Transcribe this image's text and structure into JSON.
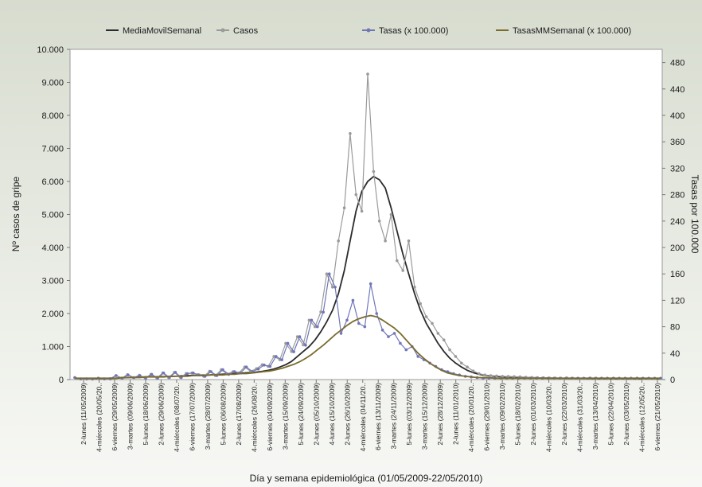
{
  "chart_data": {
    "type": "line",
    "xlabel": "Día y semana epidemiológica (01/05/2009-22/05/2010)",
    "ylabel": "Nº casos de gripe",
    "y2label": "Tasas por 100.000",
    "ylim": [
      0,
      10000
    ],
    "y2lim": [
      0,
      500
    ],
    "y_ticks": [
      "0",
      "1.000",
      "2.000",
      "3.000",
      "4.000",
      "5.000",
      "6.000",
      "7.000",
      "8.000",
      "9.000",
      "10.000"
    ],
    "y2_ticks": [
      "0",
      "40",
      "80",
      "120",
      "160",
      "200",
      "240",
      "280",
      "320",
      "360",
      "400",
      "440",
      "480"
    ],
    "grid": false,
    "legend_position": "top",
    "x_tick_labels": [
      "2-lunes (11/05/2009)",
      "4-miércoles (20/05/20..",
      "6-viernes (29/05/2009)",
      "3-martes (09/06/2009)",
      "5-lunes (18/06/2009)",
      "2-lunes (29/06/2009)",
      "4-miércoles (08/07/20..",
      "6-viernes (17/07/2009)",
      "3-martes (28/07/2009)",
      "5-lunes (06/08/2009)",
      "2-lunes (17/08/2009)",
      "4-miércoles (26/08/20..",
      "6-viernes (04/09/2009)",
      "3-martes (15/09/2009)",
      "5-lunes (24/09/2009)",
      "2-lunes (05/10/2009)",
      "4-lunes (15/10/2009)",
      "2-lunes (26/10/2009)",
      "4-miércoles (04/11/20..",
      "6-viernes (13/11/2009)",
      "3-martes (24/11/2009)",
      "5-lunes (03/12/2009)",
      "3-martes (15/12/2009)",
      "2-lunes (28/12/2009)",
      "2-lunes (11/01/2010)",
      "4-miércoles (20/01/20..",
      "6-viernes (29/01/2010)",
      "3-martes (09/02/2010)",
      "5-lunes (18/02/2010)",
      "2-lunes (01/03/2010)",
      "4-miércoles (10/03/20..",
      "2-lunes (22/03/2010)",
      "4-miércoles (31/03/20..",
      "3-martes (13/04/2010)",
      "5-lunes (22/04/2010)",
      "2-lunes (03/05/2010)",
      "4-miércoles (12/05/20..",
      "6-viernes (21/05/2010)"
    ],
    "series": [
      {
        "name": "MediaMovilSemanal",
        "axis": "left",
        "color": "#2b2b2b",
        "markers": false,
        "values": [
          40,
          35,
          30,
          28,
          30,
          32,
          35,
          40,
          50,
          60,
          70,
          75,
          80,
          85,
          85,
          90,
          95,
          100,
          110,
          120,
          125,
          130,
          135,
          140,
          150,
          160,
          170,
          180,
          190,
          200,
          215,
          230,
          250,
          280,
          320,
          380,
          450,
          550,
          700,
          850,
          1000,
          1200,
          1450,
          1750,
          2100,
          2600,
          3300,
          4200,
          5100,
          5700,
          6000,
          6150,
          6050,
          5800,
          5200,
          4500,
          3800,
          3200,
          2600,
          2100,
          1700,
          1400,
          1100,
          850,
          650,
          500,
          380,
          280,
          210,
          160,
          130,
          110,
          95,
          85,
          78,
          72,
          65,
          60,
          55,
          50,
          45,
          42,
          40,
          38,
          36,
          35,
          34,
          33,
          32,
          31,
          30,
          30,
          29,
          29,
          28,
          28,
          27,
          27,
          26,
          26,
          25
        ]
      },
      {
        "name": "Casos",
        "axis": "left",
        "color": "#9a9a9a",
        "markers": true,
        "values": [
          60,
          20,
          25,
          15,
          40,
          25,
          30,
          120,
          45,
          150,
          60,
          130,
          40,
          160,
          45,
          200,
          60,
          220,
          70,
          180,
          200,
          150,
          100,
          250,
          120,
          300,
          170,
          240,
          200,
          380,
          250,
          330,
          450,
          400,
          700,
          600,
          1100,
          850,
          1300,
          1050,
          1800,
          1600,
          2050,
          3200,
          2800,
          4200,
          5200,
          7450,
          5600,
          5100,
          9250,
          6300,
          4800,
          4200,
          5000,
          3600,
          3300,
          4200,
          2800,
          2300,
          1900,
          1700,
          1400,
          1200,
          900,
          700,
          500,
          380,
          260,
          180,
          140,
          120,
          110,
          100,
          95,
          90,
          85,
          70,
          65,
          60,
          55,
          50,
          45,
          40,
          50,
          40,
          35,
          30,
          45,
          40,
          35,
          30,
          40,
          30,
          35,
          30,
          40,
          28,
          30,
          28,
          30
        ]
      },
      {
        "name": "Tasas (x 100.000)",
        "axis": "right",
        "color": "#7076b8",
        "markers": true,
        "values": [
          3,
          1,
          1,
          1,
          2,
          1,
          1,
          6,
          2,
          7,
          3,
          6,
          2,
          8,
          2,
          10,
          3,
          11,
          3,
          9,
          10,
          7,
          5,
          12,
          6,
          15,
          8,
          12,
          10,
          19,
          12,
          16,
          22,
          20,
          35,
          30,
          55,
          42,
          65,
          52,
          90,
          80,
          102,
          160,
          140,
          70,
          90,
          120,
          85,
          80,
          145,
          100,
          75,
          65,
          70,
          55,
          45,
          50,
          35,
          30,
          25,
          20,
          15,
          12,
          9,
          7,
          5,
          4,
          3,
          2,
          2,
          2,
          2,
          2,
          2,
          2,
          2,
          2,
          2,
          2,
          2,
          2,
          2,
          2,
          2,
          2,
          2,
          2,
          2,
          2,
          2,
          2,
          2,
          2,
          2,
          2,
          2,
          2,
          2,
          2
        ]
      },
      {
        "name": "TasasMMSemanal (x 100.000)",
        "axis": "right",
        "color": "#7a6b2e",
        "markers": false,
        "values": [
          2,
          2,
          2,
          2,
          2,
          2,
          2,
          2,
          3,
          3,
          3,
          3,
          4,
          4,
          4,
          4,
          5,
          5,
          5,
          5,
          6,
          6,
          6,
          7,
          7,
          7,
          8,
          8,
          9,
          9,
          10,
          11,
          12,
          13,
          15,
          17,
          20,
          23,
          27,
          32,
          38,
          45,
          52,
          60,
          68,
          75,
          82,
          88,
          92,
          95,
          97,
          95,
          90,
          84,
          78,
          70,
          60,
          50,
          40,
          32,
          25,
          19,
          14,
          10,
          8,
          6,
          5,
          4,
          3,
          3,
          3,
          2,
          2,
          2,
          2,
          2,
          2,
          2,
          2,
          2,
          2,
          2,
          2,
          2,
          2,
          2,
          2,
          2,
          2,
          2,
          2,
          2,
          2,
          2,
          2,
          2,
          2,
          2,
          2,
          2
        ]
      }
    ]
  }
}
